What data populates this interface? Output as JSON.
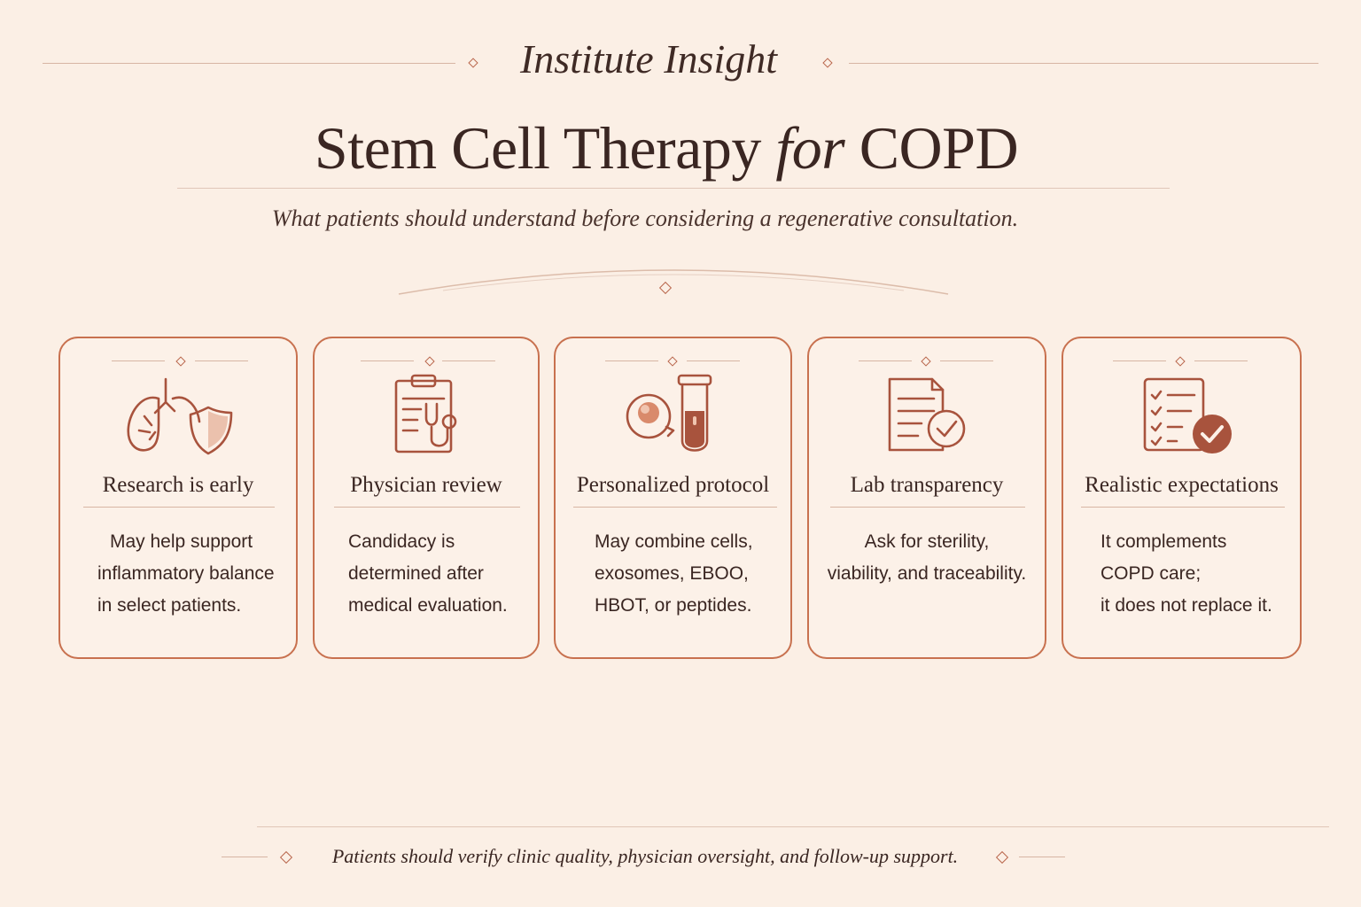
{
  "header": {
    "eyebrow": "Institute Insight",
    "title_main": "Stem Cell Therapy",
    "title_for": "for",
    "title_end": "COPD",
    "subtitle": "What patients should understand before considering a regenerative consultation."
  },
  "cards": [
    {
      "title": "Research is early",
      "icon": "lungs-shield-icon",
      "lines": [
        "May help support",
        "inflammatory balance",
        "in select patients."
      ]
    },
    {
      "title": "Physician review",
      "icon": "clipboard-stethoscope-icon",
      "lines": [
        "Candidacy is",
        "determined after",
        "medical evaluation."
      ]
    },
    {
      "title": "Personalized protocol",
      "icon": "cell-vial-icon",
      "lines": [
        "May combine cells,",
        "exosomes, EBOO,",
        "HBOT, or peptides."
      ]
    },
    {
      "title": "Lab transparency",
      "icon": "document-check-icon",
      "lines": [
        "Ask for sterility,",
        "viability, and traceability."
      ]
    },
    {
      "title": "Realistic expectations",
      "icon": "checklist-check-icon",
      "lines": [
        "It complements",
        "COPD care;",
        "it does not replace it."
      ]
    }
  ],
  "footer": {
    "note": "Patients should verify clinic quality, physician oversight, and follow-up support."
  },
  "colors": {
    "accent": "#c8714f",
    "text": "#3f2a25",
    "background": "#fbefe5"
  }
}
